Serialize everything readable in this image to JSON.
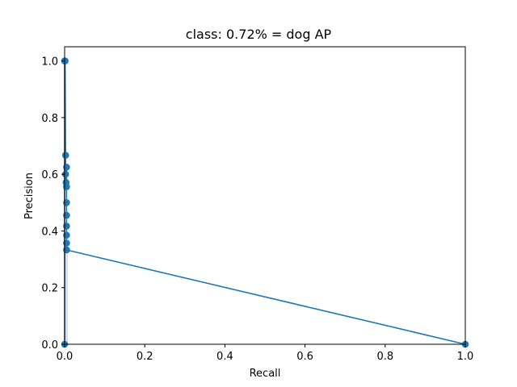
{
  "chart_data": {
    "type": "line",
    "title": "class: 0.72% = dog AP",
    "xlabel": "Recall",
    "ylabel": "Precision",
    "xlim": [
      0.0,
      1.0
    ],
    "ylim": [
      0.0,
      1.05
    ],
    "xticks": [
      "0.0",
      "0.2",
      "0.4",
      "0.6",
      "0.8",
      "1.0"
    ],
    "yticks": [
      "0.0",
      "0.2",
      "0.4",
      "0.6",
      "0.8",
      "1.0"
    ],
    "xtick_values": [
      0.0,
      0.2,
      0.4,
      0.6,
      0.8,
      1.0
    ],
    "ytick_values": [
      0.0,
      0.2,
      0.4,
      0.6,
      0.8,
      1.0
    ],
    "grid": false,
    "colors": {
      "line": "#1f77b4",
      "fill": "#e3d9ee"
    },
    "series": [
      {
        "points": [
          [
            0.0,
            0.0
          ],
          [
            0.0,
            1.0
          ],
          [
            0.0012,
            1.0
          ],
          [
            0.0024,
            0.667
          ],
          [
            0.0024,
            0.6
          ],
          [
            0.0036,
            0.571
          ],
          [
            0.0048,
            0.625
          ],
          [
            0.0048,
            0.556
          ],
          [
            0.0048,
            0.5
          ],
          [
            0.0048,
            0.455
          ],
          [
            0.0048,
            0.417
          ],
          [
            0.0048,
            0.385
          ],
          [
            0.0048,
            0.357
          ],
          [
            0.0048,
            0.333
          ],
          [
            1.0,
            0.0
          ]
        ],
        "markers": [
          [
            0.0,
            0.0
          ],
          [
            0.0,
            1.0
          ],
          [
            0.0012,
            1.0
          ],
          [
            0.0024,
            0.667
          ],
          [
            0.0024,
            0.6
          ],
          [
            0.0036,
            0.571
          ],
          [
            0.0048,
            0.625
          ],
          [
            0.0048,
            0.556
          ],
          [
            0.0048,
            0.5
          ],
          [
            0.0048,
            0.455
          ],
          [
            0.0048,
            0.417
          ],
          [
            0.0048,
            0.385
          ],
          [
            0.0048,
            0.357
          ],
          [
            0.0048,
            0.333
          ],
          [
            1.0,
            0.0
          ]
        ]
      }
    ],
    "shaded_area": {
      "x_from": 0.0,
      "x_to": 0.0048,
      "y_top": 0.333
    }
  }
}
